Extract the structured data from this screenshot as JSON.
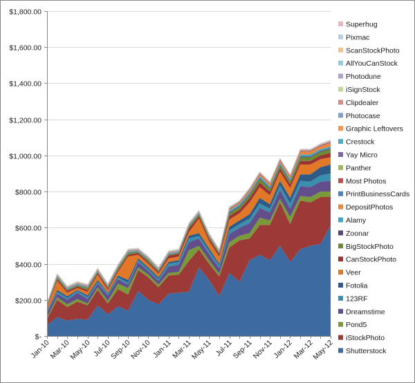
{
  "chart_data": {
    "type": "area",
    "stacked": true,
    "title": "",
    "xlabel": "",
    "ylabel": "",
    "ylim": [
      0,
      1800
    ],
    "grid": true,
    "legend_position": "right",
    "y_ticks": [
      0,
      200,
      400,
      600,
      800,
      1000,
      1200,
      1400,
      1600,
      1800
    ],
    "y_tick_labels": [
      "$-",
      "$200.00",
      "$400.00",
      "$600.00",
      "$800.00",
      "$1,000.00",
      "$1,200.00",
      "$1,400.00",
      "$1,600.00",
      "$1,800.00"
    ],
    "categories": [
      "Jan-10",
      "Feb-10",
      "Mar-10",
      "Apr-10",
      "May-10",
      "Jun-10",
      "Jul-10",
      "Aug-10",
      "Sep-10",
      "Oct-10",
      "Nov-10",
      "Dec-10",
      "Jan-11",
      "Feb-11",
      "Mar-11",
      "Apr-11",
      "May-11",
      "Jun-11",
      "Jul-11",
      "Aug-11",
      "Sep-11",
      "Oct-11",
      "Nov-11",
      "Dec-11",
      "Jan-12",
      "Feb-12",
      "Mar-12",
      "Apr-12",
      "May-12"
    ],
    "x_tick_labels": [
      "Jan-10",
      "",
      "Mar-10",
      "",
      "May-10",
      "",
      "Jul-10",
      "",
      "Sep-10",
      "",
      "Nov-10",
      "",
      "Jan-11",
      "",
      "Mar-11",
      "",
      "May-11",
      "",
      "Jul-11",
      "",
      "Sep-11",
      "",
      "Nov-11",
      "",
      "Jan-12",
      "",
      "Mar-12",
      "",
      "May-12"
    ],
    "series": [
      {
        "name": "Shutterstock",
        "color": "#3d6ba1",
        "values": [
          60,
          105,
          85,
          95,
          90,
          170,
          120,
          165,
          140,
          250,
          200,
          175,
          235,
          240,
          245,
          380,
          310,
          220,
          350,
          300,
          420,
          450,
          420,
          500,
          410,
          480,
          500,
          510,
          615
        ]
      },
      {
        "name": "iStockPhoto",
        "color": "#9c3a38",
        "values": [
          35,
          95,
          75,
          95,
          80,
          85,
          60,
          95,
          90,
          115,
          125,
          95,
          100,
          100,
          170,
          100,
          90,
          110,
          140,
          230,
          120,
          165,
          195,
          240,
          210,
          270,
          240,
          260,
          155
        ]
      },
      {
        "name": "Pond5",
        "color": "#7a9a3a",
        "values": [
          10,
          15,
          15,
          15,
          10,
          15,
          15,
          30,
          35,
          15,
          15,
          15,
          15,
          15,
          60,
          20,
          20,
          15,
          30,
          25,
          30,
          40,
          25,
          20,
          40,
          25,
          30,
          30,
          30
        ]
      },
      {
        "name": "Dreamstime",
        "color": "#624e8a",
        "values": [
          25,
          20,
          25,
          35,
          25,
          20,
          30,
          25,
          20,
          30,
          20,
          20,
          35,
          40,
          45,
          40,
          35,
          30,
          45,
          45,
          55,
          55,
          45,
          50,
          45,
          55,
          55,
          55,
          60
        ]
      },
      {
        "name": "123RF",
        "color": "#3a8fae",
        "values": [
          5,
          10,
          10,
          10,
          10,
          10,
          10,
          10,
          10,
          10,
          10,
          10,
          15,
          15,
          20,
          15,
          15,
          15,
          20,
          20,
          25,
          25,
          20,
          25,
          30,
          30,
          30,
          35,
          40
        ]
      },
      {
        "name": "Fotolia",
        "color": "#2d5a86",
        "values": [
          5,
          10,
          10,
          5,
          10,
          10,
          5,
          10,
          15,
          10,
          10,
          10,
          10,
          10,
          15,
          15,
          15,
          10,
          20,
          20,
          25,
          30,
          25,
          25,
          30,
          35,
          40,
          45,
          50
        ]
      },
      {
        "name": "Veer",
        "color": "#e07828",
        "values": [
          20,
          50,
          20,
          10,
          20,
          30,
          15,
          20,
          130,
          20,
          20,
          20,
          20,
          20,
          20,
          80,
          40,
          40,
          40,
          40,
          65,
          60,
          50,
          50,
          55,
          55,
          55,
          45,
          40
        ]
      },
      {
        "name": "CanStockPhoto",
        "color": "#9a3331",
        "values": [
          5,
          10,
          10,
          10,
          10,
          10,
          10,
          10,
          10,
          10,
          10,
          10,
          15,
          15,
          20,
          15,
          15,
          15,
          20,
          20,
          25,
          25,
          20,
          20,
          20,
          20,
          20,
          20,
          25
        ]
      },
      {
        "name": "BigStockPhoto",
        "color": "#6c8a34",
        "values": [
          5,
          10,
          5,
          5,
          10,
          5,
          5,
          10,
          10,
          5,
          10,
          5,
          5,
          5,
          10,
          10,
          10,
          5,
          15,
          15,
          15,
          20,
          15,
          15,
          15,
          20,
          20,
          20,
          20
        ]
      },
      {
        "name": "Zoonar",
        "color": "#574477",
        "values": [
          2,
          2,
          2,
          2,
          2,
          2,
          2,
          2,
          2,
          2,
          2,
          2,
          2,
          2,
          2,
          2,
          2,
          2,
          5,
          5,
          5,
          5,
          5,
          5,
          5,
          5,
          5,
          5,
          5
        ]
      },
      {
        "name": "Alamy",
        "color": "#3fa6c6",
        "values": [
          2,
          5,
          5,
          5,
          5,
          5,
          5,
          5,
          5,
          5,
          5,
          5,
          5,
          5,
          5,
          5,
          5,
          5,
          10,
          10,
          10,
          10,
          10,
          10,
          10,
          10,
          10,
          10,
          10
        ]
      },
      {
        "name": "DepositPhotos",
        "color": "#e9873c",
        "values": [
          1,
          2,
          2,
          2,
          2,
          2,
          2,
          2,
          2,
          2,
          2,
          2,
          2,
          2,
          2,
          2,
          2,
          2,
          5,
          5,
          10,
          10,
          10,
          10,
          10,
          15,
          15,
          15,
          20
        ]
      },
      {
        "name": "PrintBusinessCards",
        "color": "#4c82bd",
        "values": [
          1,
          1,
          1,
          1,
          1,
          1,
          1,
          1,
          1,
          1,
          1,
          1,
          1,
          1,
          1,
          1,
          1,
          1,
          1,
          1,
          1,
          1,
          1,
          1,
          1,
          1,
          1,
          1,
          1
        ]
      },
      {
        "name": "Most Photos",
        "color": "#c04f4b",
        "values": [
          2,
          2,
          2,
          2,
          2,
          2,
          2,
          2,
          2,
          2,
          2,
          2,
          2,
          2,
          2,
          2,
          2,
          2,
          5,
          5,
          5,
          5,
          5,
          5,
          5,
          5,
          5,
          5,
          5
        ]
      },
      {
        "name": "Panther",
        "color": "#9bbb59",
        "values": [
          1,
          1,
          1,
          1,
          1,
          1,
          1,
          1,
          1,
          1,
          1,
          1,
          1,
          1,
          1,
          1,
          1,
          1,
          1,
          1,
          1,
          1,
          1,
          1,
          1,
          1,
          1,
          1,
          1
        ]
      },
      {
        "name": "Yay Micro",
        "color": "#8064a2",
        "values": [
          1,
          1,
          1,
          1,
          1,
          1,
          1,
          1,
          1,
          1,
          1,
          1,
          1,
          1,
          1,
          1,
          1,
          1,
          1,
          1,
          1,
          1,
          1,
          1,
          1,
          1,
          1,
          1,
          1
        ]
      },
      {
        "name": "Crestock",
        "color": "#4bacc6",
        "values": [
          1,
          1,
          1,
          1,
          1,
          1,
          1,
          1,
          1,
          1,
          1,
          1,
          1,
          1,
          1,
          1,
          1,
          1,
          1,
          1,
          1,
          1,
          1,
          1,
          1,
          1,
          1,
          1,
          1
        ]
      },
      {
        "name": "Graphic Leftovers",
        "color": "#f79646",
        "values": [
          1,
          1,
          1,
          1,
          1,
          1,
          1,
          1,
          1,
          1,
          1,
          1,
          1,
          1,
          1,
          1,
          1,
          1,
          1,
          1,
          1,
          1,
          1,
          1,
          1,
          1,
          1,
          1,
          1
        ]
      },
      {
        "name": "Photocase",
        "color": "#7f9fce",
        "values": [
          1,
          1,
          1,
          1,
          1,
          1,
          1,
          1,
          1,
          1,
          1,
          1,
          1,
          1,
          1,
          1,
          1,
          1,
          1,
          1,
          1,
          1,
          1,
          1,
          1,
          1,
          1,
          1,
          1
        ]
      },
      {
        "name": "Clipdealer",
        "color": "#d88c8a",
        "values": [
          1,
          1,
          1,
          1,
          1,
          1,
          1,
          1,
          1,
          1,
          1,
          1,
          1,
          1,
          1,
          1,
          1,
          1,
          1,
          1,
          1,
          1,
          1,
          1,
          1,
          1,
          1,
          1,
          1
        ]
      },
      {
        "name": "iSignStock",
        "color": "#c4d79b",
        "values": [
          1,
          1,
          1,
          1,
          1,
          1,
          1,
          1,
          1,
          1,
          1,
          1,
          1,
          1,
          1,
          1,
          1,
          1,
          1,
          1,
          1,
          1,
          1,
          1,
          1,
          1,
          1,
          1,
          1
        ]
      },
      {
        "name": "Photodune",
        "color": "#b1a0c7",
        "values": [
          1,
          1,
          1,
          1,
          1,
          1,
          1,
          1,
          1,
          1,
          1,
          1,
          1,
          1,
          1,
          1,
          1,
          1,
          1,
          1,
          1,
          1,
          1,
          1,
          1,
          1,
          1,
          1,
          1
        ]
      },
      {
        "name": "AllYouCanStock",
        "color": "#93cddd",
        "values": [
          1,
          1,
          1,
          1,
          1,
          1,
          1,
          1,
          1,
          1,
          1,
          1,
          1,
          1,
          1,
          1,
          1,
          1,
          1,
          1,
          1,
          1,
          1,
          1,
          1,
          1,
          1,
          1,
          1
        ]
      },
      {
        "name": "ScanStockPhoto",
        "color": "#fabf8f",
        "values": [
          1,
          1,
          1,
          1,
          1,
          1,
          1,
          1,
          1,
          1,
          1,
          1,
          1,
          1,
          1,
          1,
          1,
          1,
          1,
          1,
          1,
          1,
          1,
          1,
          1,
          1,
          1,
          1,
          1
        ]
      },
      {
        "name": "Pixmac",
        "color": "#b8cce4",
        "values": [
          1,
          1,
          1,
          1,
          1,
          1,
          1,
          1,
          1,
          1,
          1,
          1,
          1,
          1,
          1,
          1,
          1,
          1,
          1,
          1,
          1,
          1,
          1,
          1,
          1,
          1,
          1,
          1,
          1
        ]
      },
      {
        "name": "Superhug",
        "color": "#e6b9b8",
        "values": [
          1,
          1,
          1,
          1,
          1,
          1,
          1,
          1,
          1,
          1,
          1,
          1,
          1,
          1,
          1,
          1,
          1,
          1,
          1,
          1,
          1,
          1,
          1,
          1,
          1,
          1,
          1,
          1,
          1
        ]
      }
    ]
  }
}
